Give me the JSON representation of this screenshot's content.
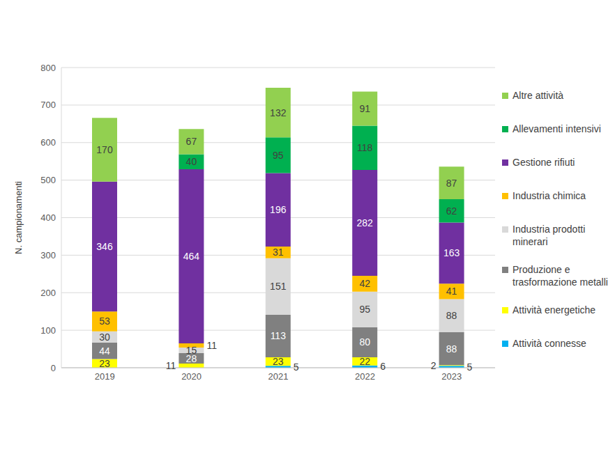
{
  "chart_data": {
    "type": "bar",
    "stacked": true,
    "data_labels": true,
    "grid": true,
    "legend": "right",
    "ylabel": "N. campionamenti",
    "categories": [
      "2019",
      "2020",
      "2021",
      "2022",
      "2023"
    ],
    "ylim": [
      0,
      800
    ],
    "yticks": [
      0,
      100,
      200,
      300,
      400,
      500,
      600,
      700,
      800
    ],
    "series": [
      {
        "name": "Attività connesse",
        "color": "#00b0f0",
        "values": [
          null,
          null,
          5,
          6,
          5
        ]
      },
      {
        "name": "Attività energetiche",
        "color": "#ffff00",
        "values": [
          23,
          11,
          23,
          22,
          2
        ]
      },
      {
        "name": "Produzione e trasformazione metalli",
        "color": "#808080",
        "values": [
          44,
          28,
          113,
          80,
          88
        ]
      },
      {
        "name": "Industria prodotti minerari",
        "color": "#d9d9d9",
        "values": [
          30,
          15,
          151,
          95,
          88
        ]
      },
      {
        "name": "Industria chimica",
        "color": "#ffc000",
        "values": [
          53,
          11,
          31,
          42,
          41
        ]
      },
      {
        "name": "Gestione rifiuti",
        "color": "#7030a0",
        "values": [
          346,
          464,
          196,
          282,
          163
        ]
      },
      {
        "name": "Allevamenti intensivi",
        "color": "#00b050",
        "values": [
          null,
          40,
          95,
          118,
          62
        ]
      },
      {
        "name": "Altre attività",
        "color": "#92d050",
        "values": [
          170,
          67,
          132,
          91,
          87
        ]
      }
    ]
  }
}
